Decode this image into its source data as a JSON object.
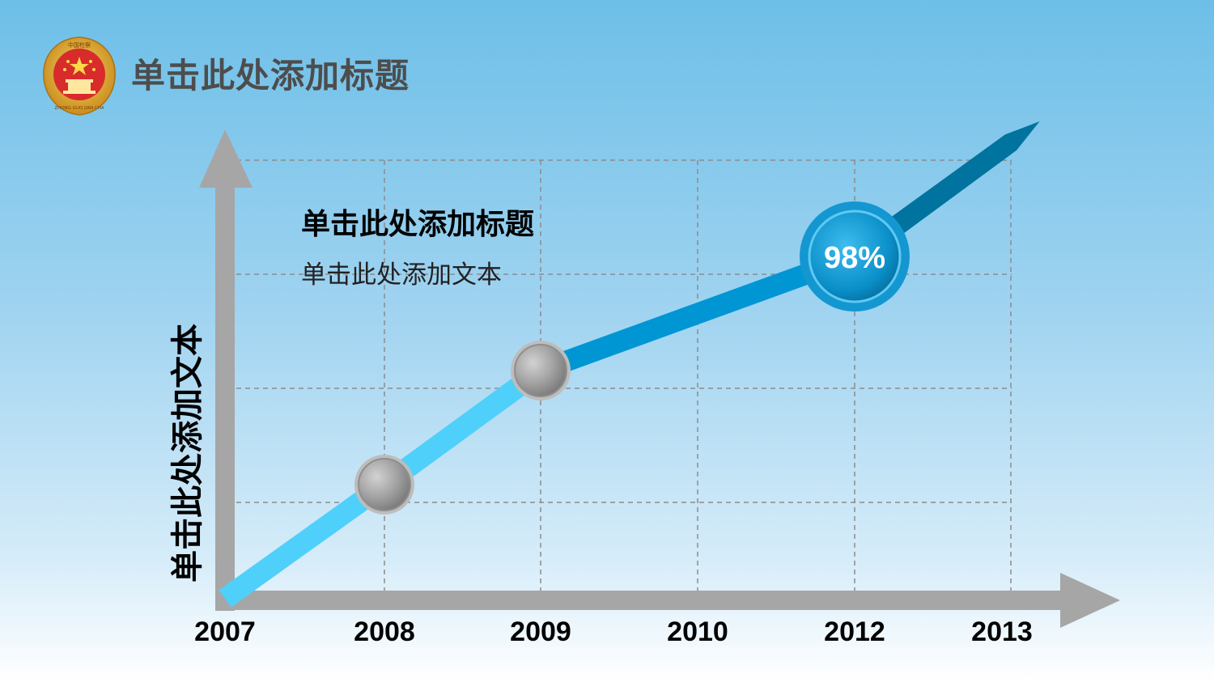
{
  "slide": {
    "title": "单击此处添加标题",
    "emblem_icon": "procuratorate-emblem-icon",
    "emblem_text": "中国检察",
    "emblem_text_en": "ZHONG GUO JIAN CHA"
  },
  "chart_data": {
    "type": "line",
    "title": "",
    "text_box": {
      "title": "单击此处添加标题",
      "body": "单击此处添加文本"
    },
    "ylabel": "单击此处添加文本",
    "xlabel": "",
    "categories": [
      "2007",
      "2008",
      "2009",
      "2010",
      "2012",
      "2013"
    ],
    "x": [
      "2007",
      "2008",
      "2009",
      "2012",
      "2013"
    ],
    "values": [
      0,
      1,
      2,
      3,
      4
    ],
    "marked_points": [
      {
        "x": "2008",
        "label": ""
      },
      {
        "x": "2009",
        "label": ""
      },
      {
        "x": "2012",
        "label": "98%"
      }
    ],
    "ylim": [
      0,
      4
    ],
    "grid": true,
    "colors": {
      "segment_lower": "#4fd0fb",
      "segment_upper": "#0096d4",
      "segment_tip": "#00739e",
      "axis": "#a6a6a6",
      "grid": "#8c8c8c",
      "callout": "#0a8fc8"
    }
  }
}
